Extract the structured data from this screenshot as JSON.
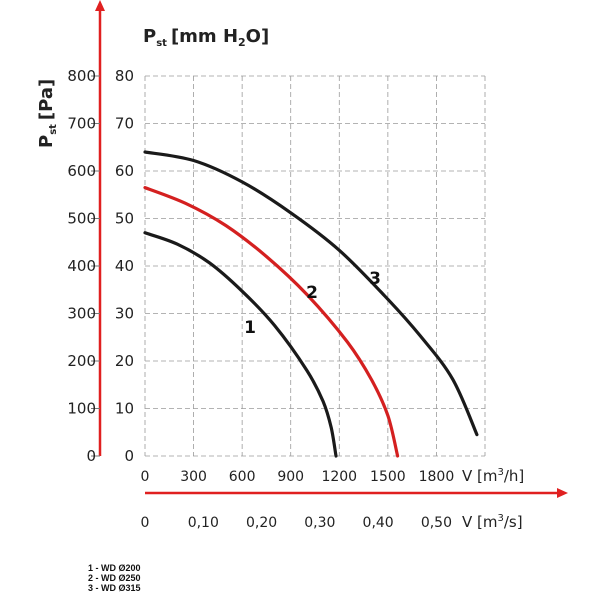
{
  "chart_data": {
    "type": "line",
    "y_axis_left": {
      "label_main": "P",
      "label_sub": "st",
      "label_unit": "[Pa]",
      "ticks": [
        "0",
        "100",
        "200",
        "300",
        "400",
        "500",
        "600",
        "700",
        "800"
      ],
      "range": [
        0,
        800
      ]
    },
    "y_axis_inner": {
      "label_main": "P",
      "label_sub": "st",
      "label_unit_prefix": "[mm H",
      "label_unit_sub": "2",
      "label_unit_suffix": "O]",
      "ticks": [
        "0",
        "10",
        "20",
        "30",
        "40",
        "50",
        "60",
        "70",
        "80"
      ],
      "range": [
        0,
        80
      ]
    },
    "x_axis_m3h": {
      "label_prefix": "V [m",
      "label_sup": "3",
      "label_suffix": "/h]",
      "ticks": [
        "0",
        "300",
        "600",
        "900",
        "1200",
        "1500",
        "1800"
      ],
      "range": [
        0,
        2100
      ]
    },
    "x_axis_m3s": {
      "label_prefix": "V [m",
      "label_sup": "3",
      "label_suffix": "/s]",
      "ticks": [
        "0",
        "0,10",
        "0,20",
        "0,30",
        "0,40",
        "0,50"
      ]
    },
    "series": [
      {
        "name": "1",
        "color": "#1a1a1a",
        "x": [
          0,
          200,
          400,
          600,
          800,
          1000,
          1100,
          1150,
          1180
        ],
        "y": [
          47,
          44.6,
          40.6,
          34.7,
          27.5,
          18.0,
          11.5,
          6.0,
          0
        ]
      },
      {
        "name": "2",
        "color": "#d42020",
        "x": [
          0,
          250,
          500,
          750,
          1000,
          1250,
          1400,
          1500,
          1560
        ],
        "y": [
          56.5,
          53.2,
          48.5,
          42.0,
          34.0,
          24.0,
          16.0,
          8.5,
          0
        ]
      },
      {
        "name": "3",
        "color": "#1a1a1a",
        "x": [
          0,
          300,
          600,
          900,
          1200,
          1500,
          1700,
          1900,
          2050
        ],
        "y": [
          64,
          62.2,
          57.7,
          51.2,
          43.3,
          33.0,
          25.3,
          16.2,
          4.5
        ]
      }
    ],
    "legend": [
      "1 - WD Ø200",
      "2 - WD Ø250",
      "3 - WD Ø315"
    ],
    "grid": true
  },
  "colors": {
    "axis_arrow": "#e02020",
    "grid": "#9a9a9a",
    "curve_dark": "#1a1a1a",
    "curve_red": "#d42020"
  }
}
